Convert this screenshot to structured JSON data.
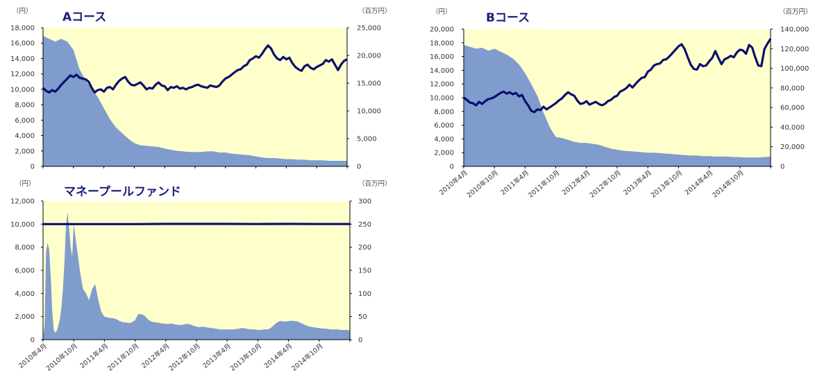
{
  "colors": {
    "plot_bg": "#ffffcc",
    "area_fill": "#7f9ccd",
    "line": "#0a0f6e",
    "axis": "#000000"
  },
  "chart_data": [
    {
      "id": "A",
      "type": "area+line",
      "title": "Aコース",
      "left_unit": "（円）",
      "right_unit": "（百万円）",
      "left_ticks": [
        "0",
        "2,000",
        "4,000",
        "6,000",
        "8,000",
        "10,000",
        "12,000",
        "14,000",
        "16,000",
        "18,000"
      ],
      "right_ticks": [
        "0",
        "5,000",
        "10,000",
        "15,000",
        "20,000",
        "25,000"
      ],
      "ylim_left": [
        0,
        18000
      ],
      "ylim_right": [
        0,
        25000
      ],
      "x_tick_labels": [],
      "series": [
        {
          "name": "",
          "axis": "left",
          "kind": "line",
          "x": [
            0,
            2,
            4,
            6,
            8,
            10,
            12,
            14,
            16,
            18,
            20,
            22,
            24,
            26,
            28,
            30,
            32,
            34,
            36,
            38,
            40,
            42,
            44,
            46,
            48,
            50,
            52,
            54,
            56,
            58,
            60,
            62,
            64,
            66,
            68,
            70,
            72,
            74,
            76,
            78,
            80,
            82,
            84,
            86,
            88,
            90,
            92,
            94,
            96,
            98,
            100,
            102,
            104,
            106,
            108,
            110,
            112,
            114,
            116,
            118,
            120,
            122,
            124,
            126,
            128,
            130,
            132,
            134,
            136,
            138,
            140,
            142,
            144,
            146,
            148,
            150,
            152,
            154,
            156,
            158,
            160,
            162,
            164,
            166,
            168,
            170,
            172,
            174,
            176,
            178,
            180,
            182,
            184,
            186,
            188,
            190,
            192,
            194,
            196,
            198,
            200
          ],
          "values": [
            10200,
            9800,
            9600,
            9900,
            9700,
            10100,
            10600,
            11000,
            11400,
            11800,
            11600,
            11900,
            11500,
            11400,
            11300,
            11000,
            10200,
            9600,
            9900,
            10000,
            9700,
            10200,
            10300,
            10000,
            10600,
            11100,
            11400,
            11600,
            11000,
            10600,
            10500,
            10700,
            10900,
            10500,
            10000,
            10200,
            10100,
            10600,
            10900,
            10500,
            10400,
            9900,
            10300,
            10200,
            10400,
            10100,
            10200,
            10000,
            10200,
            10300,
            10500,
            10600,
            10400,
            10300,
            10200,
            10500,
            10400,
            10300,
            10500,
            11000,
            11400,
            11600,
            11900,
            12200,
            12500,
            12600,
            13000,
            13200,
            13800,
            14000,
            14300,
            14100,
            14600,
            15200,
            15700,
            15300,
            14500,
            14000,
            13800,
            14200,
            13900,
            14100,
            13400,
            12900,
            12600,
            12400,
            13000,
            13200,
            12800,
            12600,
            12900,
            13100,
            13300,
            13800,
            13600,
            13900,
            13200,
            12500,
            13200,
            13700,
            13900
          ]
        },
        {
          "name": "",
          "axis": "right",
          "kind": "area",
          "x": [
            0,
            4,
            8,
            12,
            16,
            20,
            24,
            28,
            32,
            36,
            40,
            44,
            48,
            52,
            56,
            60,
            64,
            68,
            72,
            76,
            80,
            84,
            88,
            92,
            96,
            100,
            104,
            108,
            112,
            116,
            120,
            124,
            128,
            132,
            136,
            140,
            144,
            148,
            152,
            156,
            160,
            164,
            168,
            172,
            176,
            180,
            184,
            188,
            192,
            196,
            200
          ],
          "values": [
            23500,
            23000,
            22500,
            23000,
            22500,
            21000,
            17500,
            15500,
            14000,
            12500,
            10500,
            8500,
            7000,
            6000,
            5000,
            4200,
            3800,
            3700,
            3600,
            3500,
            3200,
            3000,
            2800,
            2700,
            2600,
            2600,
            2600,
            2700,
            2700,
            2500,
            2500,
            2300,
            2200,
            2100,
            2000,
            1800,
            1600,
            1500,
            1500,
            1400,
            1300,
            1300,
            1200,
            1200,
            1100,
            1100,
            1100,
            1000,
            1000,
            1000,
            1000
          ]
        }
      ]
    },
    {
      "id": "B",
      "type": "area+line",
      "title": "Bコース",
      "left_unit": "（円）",
      "right_unit": "（百万円）",
      "left_ticks": [
        "0",
        "2,000",
        "4,000",
        "6,000",
        "8,000",
        "10,000",
        "12,000",
        "14,000",
        "16,000",
        "18,000",
        "20,000"
      ],
      "right_ticks": [
        "0",
        "20,000",
        "40,000",
        "60,000",
        "80,000",
        "100,000",
        "120,000",
        "140,000"
      ],
      "ylim_left": [
        0,
        20000
      ],
      "ylim_right": [
        0,
        140000
      ],
      "x_tick_labels": [
        "2010年4月",
        "2010年10月",
        "2011年4月",
        "2011年10月",
        "2012年4月",
        "2012年10月",
        "2013年4月",
        "2013年10月",
        "2014年4月",
        "2014年10月"
      ],
      "series": [
        {
          "name": "",
          "axis": "left",
          "kind": "line",
          "x": [
            0,
            2,
            4,
            6,
            8,
            10,
            12,
            14,
            16,
            18,
            20,
            22,
            24,
            26,
            28,
            30,
            32,
            34,
            36,
            38,
            40,
            42,
            44,
            46,
            48,
            50,
            52,
            54,
            56,
            58,
            60,
            62,
            64,
            66,
            68,
            70,
            72,
            74,
            76,
            78,
            80,
            82,
            84,
            86,
            88,
            90,
            92,
            94,
            96,
            98,
            100,
            102,
            104,
            106,
            108,
            110,
            112,
            114,
            116,
            118,
            120,
            122,
            124,
            126,
            128,
            130,
            132,
            134,
            136,
            138,
            140,
            142,
            144,
            146,
            148,
            150,
            152,
            154,
            156,
            158,
            160,
            162,
            164,
            166,
            168,
            170,
            172,
            174,
            176,
            178,
            180,
            182,
            184,
            186,
            188,
            190,
            192,
            194,
            196,
            198,
            200
          ],
          "values": [
            10000,
            9700,
            9300,
            9200,
            8900,
            9400,
            9100,
            9500,
            9800,
            9900,
            10100,
            10400,
            10700,
            10900,
            10600,
            10800,
            10500,
            10700,
            10200,
            10400,
            9500,
            8900,
            8100,
            7900,
            8300,
            8200,
            8700,
            8300,
            8600,
            8900,
            9200,
            9600,
            9900,
            10400,
            10800,
            10500,
            10300,
            9600,
            9100,
            9200,
            9500,
            9000,
            9200,
            9400,
            9100,
            8900,
            9100,
            9500,
            9700,
            10100,
            10300,
            10900,
            11100,
            11400,
            11900,
            11500,
            12000,
            12500,
            12900,
            13000,
            13800,
            14100,
            14700,
            14900,
            15000,
            15500,
            15600,
            16000,
            16500,
            17000,
            17500,
            17800,
            17100,
            15900,
            14800,
            14200,
            14100,
            14900,
            14600,
            14700,
            15300,
            15800,
            16800,
            15800,
            14900,
            15600,
            15800,
            16100,
            15900,
            16600,
            17000,
            16900,
            16400,
            17700,
            17300,
            15900,
            14700,
            14600,
            17100,
            17900,
            18600
          ]
        },
        {
          "name": "",
          "axis": "right",
          "kind": "area",
          "x": [
            0,
            4,
            8,
            12,
            16,
            20,
            24,
            28,
            32,
            36,
            40,
            44,
            48,
            52,
            56,
            60,
            64,
            68,
            72,
            76,
            80,
            84,
            88,
            92,
            96,
            100,
            104,
            108,
            112,
            116,
            120,
            124,
            128,
            132,
            136,
            140,
            144,
            148,
            152,
            156,
            160,
            164,
            168,
            172,
            176,
            180,
            184,
            188,
            192,
            196,
            200
          ],
          "values": [
            124000,
            122000,
            120000,
            121000,
            118000,
            120000,
            117000,
            114000,
            110000,
            104000,
            95000,
            84000,
            72000,
            55000,
            40000,
            30000,
            29000,
            27000,
            25000,
            24000,
            24000,
            23000,
            22000,
            20000,
            18000,
            17000,
            16000,
            15500,
            15000,
            14500,
            14000,
            14000,
            13500,
            13000,
            12500,
            12000,
            11500,
            11000,
            11000,
            10500,
            10500,
            10000,
            10000,
            10000,
            9500,
            9500,
            9000,
            9000,
            9000,
            9500,
            10000
          ]
        }
      ]
    },
    {
      "id": "MMF",
      "type": "area+line",
      "title": "マネープールファンド",
      "left_unit": "（円）",
      "right_unit": "（百万円）",
      "left_ticks": [
        "0",
        "2,000",
        "4,000",
        "6,000",
        "8,000",
        "10,000",
        "12,000"
      ],
      "right_ticks": [
        "0",
        "50",
        "100",
        "150",
        "200",
        "250",
        "300"
      ],
      "ylim_left": [
        0,
        12000
      ],
      "ylim_right": [
        0,
        300
      ],
      "x_tick_labels": [
        "2010年4月",
        "2010年10月",
        "2011年4月",
        "2011年10月",
        "2012年4月",
        "2012年10月",
        "2013年4月",
        "2013年10月",
        "2014年4月",
        "2014年10月"
      ],
      "series": [
        {
          "name": "",
          "axis": "left",
          "kind": "line",
          "x": [
            0,
            20,
            40,
            60,
            80,
            100,
            120,
            140,
            160,
            180,
            200
          ],
          "values": [
            10000,
            10000,
            10000,
            10000,
            10020,
            10020,
            10020,
            10010,
            10020,
            10010,
            10010
          ]
        },
        {
          "name": "",
          "axis": "right",
          "kind": "area",
          "x": [
            0,
            1,
            2,
            3,
            4,
            5,
            6,
            7,
            8,
            9,
            10,
            11,
            12,
            13,
            14,
            15,
            16,
            17,
            18,
            19,
            20,
            22,
            24,
            26,
            28,
            30,
            32,
            34,
            36,
            38,
            40,
            42,
            44,
            46,
            48,
            50,
            52,
            54,
            56,
            58,
            60,
            62,
            64,
            66,
            68,
            70,
            72,
            74,
            76,
            78,
            80,
            82,
            84,
            86,
            88,
            90,
            92,
            94,
            96,
            98,
            100,
            102,
            104,
            106,
            108,
            110,
            112,
            114,
            116,
            118,
            120,
            122,
            124,
            126,
            128,
            130,
            132,
            134,
            136,
            138,
            140,
            142,
            144,
            146,
            148,
            150,
            152,
            154,
            156,
            158,
            160,
            162,
            164,
            166,
            168,
            170,
            172,
            174,
            176,
            178,
            180,
            182,
            184,
            186,
            188,
            190,
            192,
            194,
            196,
            198,
            200
          ],
          "values": [
            5,
            30,
            190,
            210,
            195,
            140,
            60,
            20,
            15,
            20,
            30,
            45,
            70,
            110,
            170,
            250,
            275,
            240,
            200,
            180,
            250,
            200,
            150,
            110,
            100,
            85,
            110,
            120,
            85,
            60,
            50,
            48,
            47,
            46,
            44,
            40,
            38,
            37,
            36,
            38,
            42,
            55,
            55,
            52,
            45,
            40,
            38,
            37,
            36,
            35,
            34,
            34,
            35,
            33,
            32,
            32,
            33,
            34,
            33,
            30,
            28,
            27,
            28,
            27,
            26,
            25,
            24,
            23,
            22,
            22,
            22,
            22,
            22,
            23,
            24,
            25,
            24,
            23,
            22,
            22,
            21,
            21,
            22,
            22,
            24,
            30,
            36,
            40,
            40,
            39,
            40,
            41,
            40,
            39,
            36,
            33,
            30,
            28,
            27,
            26,
            25,
            24,
            24,
            23,
            22,
            22,
            22,
            21,
            21,
            21,
            20
          ]
        }
      ]
    }
  ]
}
